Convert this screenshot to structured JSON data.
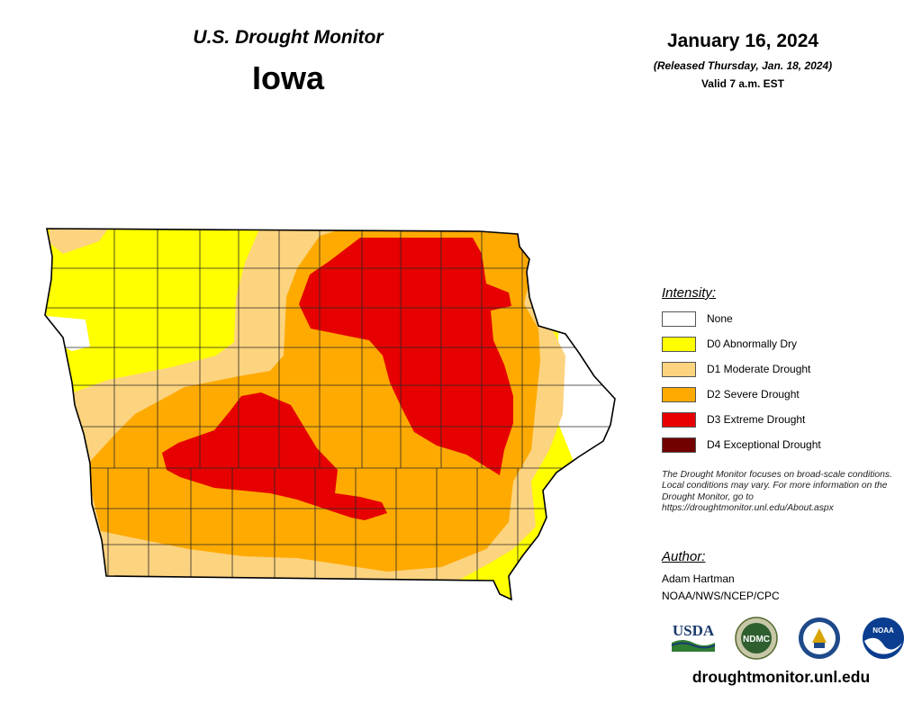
{
  "header": {
    "monitor_title": "U.S. Drought Monitor",
    "state": "Iowa",
    "date": "January 16, 2024",
    "release_note": "(Released Thursday, Jan. 18, 2024)",
    "valid_time": "Valid 7 a.m. EST"
  },
  "legend": {
    "heading": "Intensity:",
    "items": [
      {
        "label": "None",
        "color": "#ffffff"
      },
      {
        "label": "D0 Abnormally Dry",
        "color": "#ffff00"
      },
      {
        "label": "D1 Moderate Drought",
        "color": "#fcd37f"
      },
      {
        "label": "D2 Severe Drought",
        "color": "#ffaa00"
      },
      {
        "label": "D3 Extreme Drought",
        "color": "#e60000"
      },
      {
        "label": "D4 Exceptional Drought",
        "color": "#730000"
      }
    ]
  },
  "disclaimer": "The Drought Monitor focuses on broad-scale conditions. Local conditions may vary. For more information on the Drought Monitor, go to https://droughtmonitor.unl.edu/About.aspx",
  "author": {
    "heading": "Author:",
    "name": "Adam Hartman",
    "org": "NOAA/NWS/NCEP/CPC"
  },
  "logos": {
    "usda": "USDA",
    "ndmc": "NDMC",
    "noaa": "NOAA"
  },
  "website": "droughtmonitor.unl.edu"
}
